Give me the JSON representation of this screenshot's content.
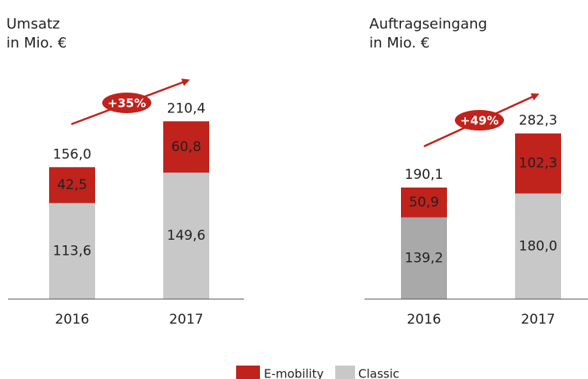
{
  "chart_data": [
    {
      "type": "bar",
      "stacked": true,
      "title": "Umsatz",
      "subtitle": "in Mio. €",
      "categories": [
        "2016",
        "2017"
      ],
      "series": [
        {
          "name": "Classic",
          "color": "#c8c8c8",
          "values": [
            113.6,
            149.6
          ],
          "value_labels": [
            "113,6",
            "149,6"
          ]
        },
        {
          "name": "E-mobility",
          "color": "#c0221c",
          "values": [
            42.5,
            60.8
          ],
          "value_labels": [
            "42,5",
            "60,8"
          ]
        }
      ],
      "totals": {
        "values": [
          156.0,
          210.4
        ],
        "value_labels": [
          "156,0",
          "210,4"
        ]
      },
      "annotation": "+35%",
      "ylim": [
        0,
        250
      ]
    },
    {
      "type": "bar",
      "stacked": true,
      "title": "Auftragseingang",
      "subtitle": "in Mio. €",
      "categories": [
        "2016",
        "2017"
      ],
      "series": [
        {
          "color": "#c8c8c8",
          "colors": [
            "#a9a9a9",
            "#c8c8c8"
          ],
          "values": [
            139.2,
            180.0
          ],
          "value_labels": [
            "139,2",
            "180,0"
          ]
        },
        {
          "color": "#c0221c",
          "values": [
            50.9,
            102.3
          ],
          "value_labels": [
            "50,9",
            "102,3"
          ]
        }
      ],
      "totals": {
        "values": [
          190.1,
          282.3
        ],
        "value_labels": [
          "190,1",
          "282,3"
        ]
      },
      "annotation": "+49%",
      "ylim": [
        0,
        360
      ]
    }
  ]
}
